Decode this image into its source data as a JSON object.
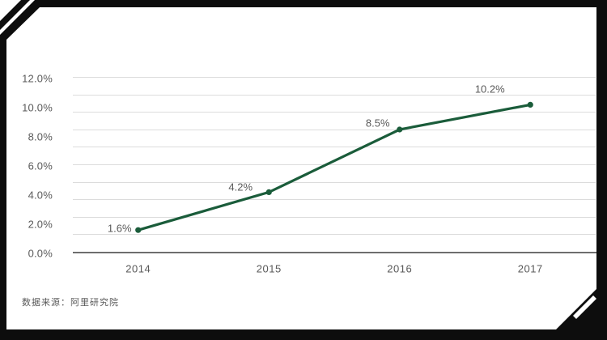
{
  "source_note": "数据来源：阿里研究院",
  "frame": {
    "color": "#0d0d0d",
    "accent": "#ffffff"
  },
  "chart_data": {
    "type": "line",
    "title": "",
    "xlabel": "",
    "ylabel": "",
    "categories": [
      "2014",
      "2015",
      "2016",
      "2017"
    ],
    "values": [
      1.6,
      4.2,
      8.5,
      10.2
    ],
    "data_labels": [
      "1.6%",
      "4.2%",
      "8.5%",
      "10.2%"
    ],
    "y_ticks": [
      "12.0%",
      "10.0%",
      "8.0%",
      "6.0%",
      "4.0%",
      "2.0%",
      "0.0%"
    ],
    "ylim": [
      0,
      12
    ],
    "grid": "horizontal gridlines on, 11 lines",
    "legend": "none",
    "line_color": "#1a5c3a",
    "marker": "filled circle",
    "tick_color": "#595959",
    "gridline_color": "#dcdcdc",
    "axis_line_color": "#6e6e6e",
    "source": "数据来源：阿里研究院"
  }
}
